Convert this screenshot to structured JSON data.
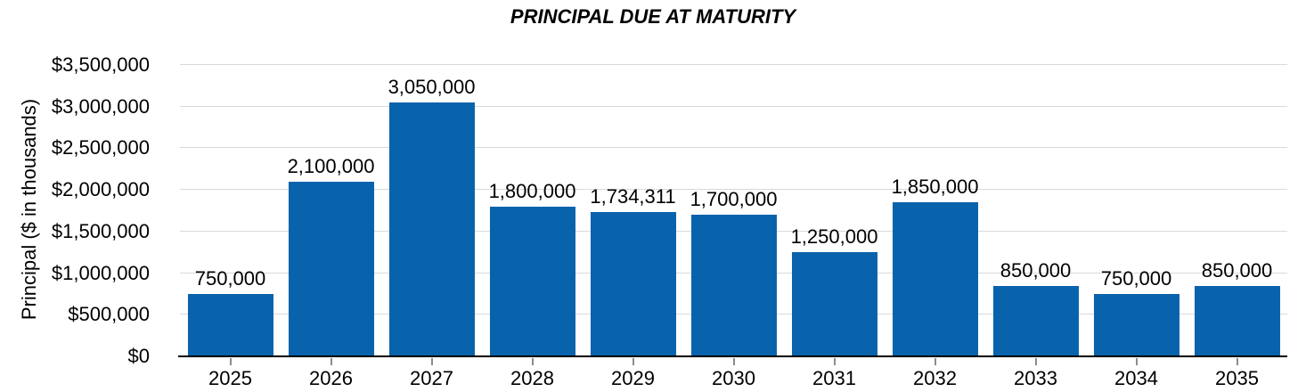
{
  "page": {
    "background": "#ffffff"
  },
  "chart_data": {
    "type": "bar",
    "title": "PRINCIPAL DUE AT MATURITY",
    "ylabel": "Principal ($ in thousands)",
    "xlabel": "",
    "categories": [
      "2025",
      "2026",
      "2027",
      "2028",
      "2029",
      "2030",
      "2031",
      "2032",
      "2033",
      "2034",
      "2035"
    ],
    "values": [
      750000,
      2100000,
      3050000,
      1800000,
      1734311,
      1700000,
      1250000,
      1850000,
      850000,
      750000,
      850000
    ],
    "value_labels": [
      "750,000",
      "2,100,000",
      "3,050,000",
      "1,800,000",
      "1,734,311",
      "1,700,000",
      "1,250,000",
      "1,850,000",
      "850,000",
      "750,000",
      "850,000"
    ],
    "ylim": [
      0,
      3500000
    ],
    "ytick_step": 500000,
    "ytick_labels": [
      "$0",
      "$500,000",
      "$1,000,000",
      "$1,500,000",
      "$2,000,000",
      "$2,500,000",
      "$3,000,000",
      "$3,500,000"
    ],
    "grid": true,
    "legend": false,
    "colors": {
      "bar": "#0963ac",
      "gridline": "#d9d9d9",
      "axis": "#000000",
      "tick": "#8c8c8c",
      "text": "#000000"
    }
  }
}
